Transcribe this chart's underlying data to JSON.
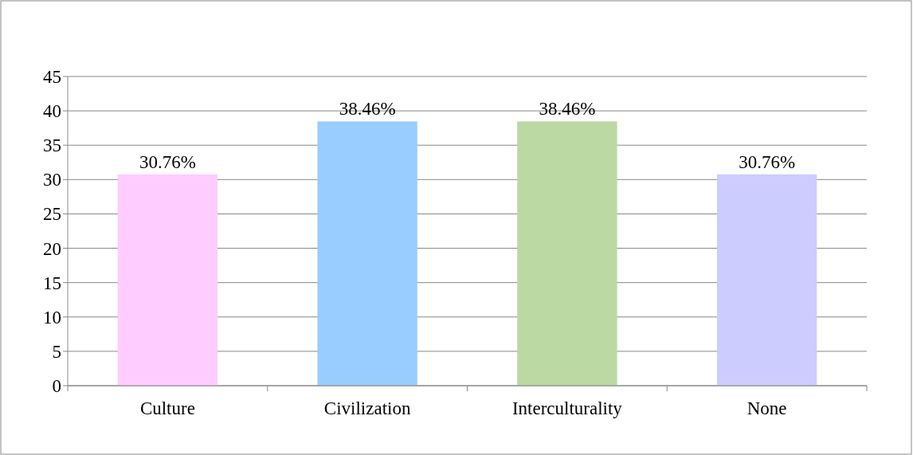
{
  "chart_data": {
    "type": "bar",
    "categories": [
      "Culture",
      "Civilization",
      "Interculturality",
      "None"
    ],
    "values": [
      30.76,
      38.46,
      38.46,
      30.76
    ],
    "value_labels": [
      "30.76%",
      "38.46%",
      "38.46%",
      "30.76%"
    ],
    "colors": [
      "#ffccff",
      "#99ccff",
      "#bbd9a2",
      "#ccccff"
    ],
    "ylim": [
      0,
      45
    ],
    "yticks": [
      0,
      5,
      10,
      15,
      20,
      25,
      30,
      35,
      40,
      45
    ],
    "grid": "y"
  }
}
